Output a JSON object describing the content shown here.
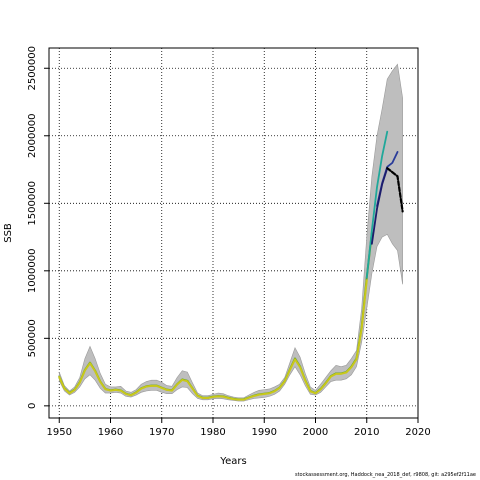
{
  "chart_data": {
    "type": "line",
    "xlabel": "Years",
    "ylabel": "SSB",
    "xlim": [
      1948,
      2020
    ],
    "ylim": [
      0,
      2600000
    ],
    "x_ticks": [
      1950,
      1960,
      1970,
      1980,
      1990,
      2000,
      2010,
      2020
    ],
    "y_ticks": [
      0,
      500000,
      1000000,
      1500000,
      2000000,
      2500000
    ],
    "grid": true,
    "grid_style": "dotted",
    "footer": "stockassessment.org, Haddock_nea_2018_def, r9808, git: a295ef2f11ae",
    "colors": {
      "band": "#bebebe",
      "band_edge": "#9a9a9a",
      "main_line": "#55a024",
      "yellow_line": "#c8c81a",
      "peel_teal": "#20a89a",
      "peel_blue": "#2a3c9a",
      "peel_navy": "#1c1c6c",
      "peel_black": "#000000"
    },
    "band": {
      "x": [
        1950,
        1951,
        1952,
        1953,
        1954,
        1955,
        1956,
        1957,
        1958,
        1959,
        1960,
        1961,
        1962,
        1963,
        1964,
        1965,
        1966,
        1967,
        1968,
        1969,
        1970,
        1971,
        1972,
        1973,
        1974,
        1975,
        1976,
        1977,
        1978,
        1979,
        1980,
        1981,
        1982,
        1983,
        1984,
        1985,
        1986,
        1987,
        1988,
        1989,
        1990,
        1991,
        1992,
        1993,
        1994,
        1995,
        1996,
        1997,
        1998,
        1999,
        2000,
        2001,
        2002,
        2003,
        2004,
        2005,
        2006,
        2007,
        2008,
        2009,
        2010,
        2011,
        2012,
        2013,
        2014,
        2015,
        2016,
        2017
      ],
      "lower": [
        185000,
        110000,
        80000,
        100000,
        140000,
        200000,
        230000,
        190000,
        130000,
        95000,
        95000,
        100000,
        95000,
        70000,
        65000,
        80000,
        100000,
        110000,
        115000,
        115000,
        100000,
        90000,
        90000,
        120000,
        140000,
        135000,
        90000,
        55000,
        45000,
        45000,
        52000,
        55000,
        52000,
        45000,
        40000,
        35000,
        35000,
        45000,
        55000,
        58000,
        62000,
        70000,
        85000,
        110000,
        160000,
        230000,
        290000,
        230000,
        150000,
        85000,
        80000,
        100000,
        140000,
        180000,
        190000,
        190000,
        200000,
        230000,
        290000,
        470000,
        720000,
        980000,
        1180000,
        1250000,
        1270000,
        1200000,
        1150000,
        900000
      ],
      "upper": [
        250000,
        150000,
        110000,
        140000,
        210000,
        350000,
        440000,
        350000,
        240000,
        160000,
        140000,
        140000,
        145000,
        110000,
        100000,
        120000,
        160000,
        180000,
        190000,
        190000,
        175000,
        150000,
        145000,
        210000,
        260000,
        250000,
        170000,
        95000,
        75000,
        75000,
        85000,
        95000,
        90000,
        75000,
        65000,
        60000,
        60000,
        80000,
        100000,
        115000,
        120000,
        125000,
        140000,
        160000,
        210000,
        320000,
        430000,
        360000,
        240000,
        140000,
        115000,
        160000,
        210000,
        260000,
        300000,
        290000,
        300000,
        350000,
        410000,
        720000,
        1250000,
        1700000,
        2000000,
        2200000,
        2420000,
        2480000,
        2530000,
        2280000
      ]
    },
    "series": [
      {
        "name": "",
        "color": "#55a024",
        "x": [
          1950,
          1951,
          1952,
          1953,
          1954,
          1955,
          1956,
          1957,
          1958,
          1959,
          1960,
          1961,
          1962,
          1963,
          1964,
          1965,
          1966,
          1967,
          1968,
          1969,
          1970,
          1971,
          1972,
          1973,
          1974,
          1975,
          1976,
          1977,
          1978,
          1979,
          1980,
          1981,
          1982,
          1983,
          1984,
          1985,
          1986,
          1987,
          1988,
          1989,
          1990,
          1991,
          1992,
          1993,
          1994,
          1995,
          1996,
          1997,
          1998,
          1999,
          2000,
          2001,
          2002,
          2003,
          2004,
          2005,
          2006,
          2007,
          2008,
          2009,
          2010,
          2011
        ],
        "values": [
          215000,
          130000,
          95000,
          120000,
          175000,
          265000,
          320000,
          260000,
          180000,
          125000,
          115000,
          120000,
          115000,
          90000,
          80000,
          100000,
          130000,
          145000,
          150000,
          150000,
          135000,
          120000,
          115000,
          160000,
          195000,
          185000,
          130000,
          75000,
          60000,
          60000,
          68000,
          72000,
          70000,
          60000,
          52000,
          48000,
          48000,
          62000,
          75000,
          85000,
          90000,
          95000,
          110000,
          135000,
          185000,
          270000,
          350000,
          290000,
          190000,
          110000,
          95000,
          125000,
          170000,
          220000,
          240000,
          240000,
          250000,
          290000,
          350000,
          580000,
          950000,
          1280000
        ]
      },
      {
        "name": "",
        "color": "#c8c81a",
        "x": [
          1950,
          1951,
          1952,
          1953,
          1954,
          1955,
          1956,
          1957,
          1958,
          1959,
          1960,
          1961,
          1962,
          1963,
          1964,
          1965,
          1966,
          1967,
          1968,
          1969,
          1970,
          1971,
          1972,
          1973,
          1974,
          1975,
          1976,
          1977,
          1978,
          1979,
          1980,
          1981,
          1982,
          1983,
          1984,
          1985,
          1986,
          1987,
          1988,
          1989,
          1990,
          1991,
          1992,
          1993,
          1994,
          1995,
          1996,
          1997,
          1998,
          1999,
          2000,
          2001,
          2002,
          2003,
          2004,
          2005,
          2006,
          2007,
          2008,
          2009,
          2010
        ],
        "values": [
          213000,
          128000,
          93000,
          118000,
          172000,
          262000,
          316000,
          257000,
          178000,
          123000,
          113000,
          118000,
          113000,
          88000,
          78000,
          98000,
          128000,
          143000,
          148000,
          148000,
          133000,
          118000,
          113000,
          158000,
          192000,
          182000,
          128000,
          73000,
          58000,
          58000,
          66000,
          70000,
          68000,
          58000,
          50000,
          46000,
          46000,
          60000,
          73000,
          83000,
          88000,
          93000,
          108000,
          133000,
          182000,
          266000,
          345000,
          286000,
          187000,
          108000,
          93000,
          122000,
          167000,
          217000,
          237000,
          237000,
          247000,
          286000,
          345000,
          570000,
          930000
        ]
      },
      {
        "name": "",
        "color": "#20a89a",
        "x": [
          2010,
          2011,
          2012,
          2013,
          2014
        ],
        "values": [
          950000,
          1300000,
          1620000,
          1850000,
          2030000
        ]
      },
      {
        "name": "",
        "color": "#2a3c9a",
        "x": [
          2012,
          2013,
          2014,
          2015,
          2016
        ],
        "values": [
          1480000,
          1650000,
          1770000,
          1800000,
          1880000
        ]
      },
      {
        "name": "",
        "color": "#1c1c6c",
        "x": [
          2011,
          2012,
          2013,
          2014
        ],
        "values": [
          1200000,
          1460000,
          1640000,
          1760000
        ]
      },
      {
        "name": "",
        "color": "#000000",
        "dashed": true,
        "x": [
          2014,
          2015,
          2016,
          2017
        ],
        "values": [
          1760000,
          1730000,
          1700000,
          1440000
        ]
      }
    ]
  }
}
